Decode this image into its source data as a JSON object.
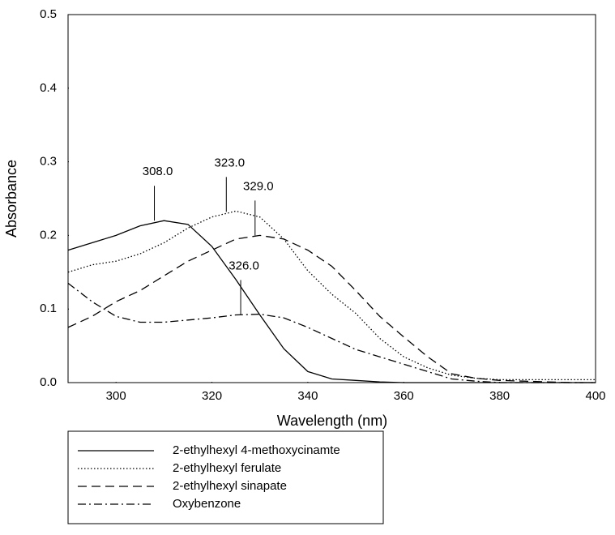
{
  "chart_data": {
    "type": "line",
    "xlabel": "Wavelength (nm)",
    "ylabel": "Absorbance",
    "x": [
      290,
      295,
      300,
      305,
      310,
      315,
      320,
      325,
      330,
      335,
      340,
      345,
      350,
      355,
      360,
      365,
      370,
      375,
      380,
      385,
      390,
      395,
      400
    ],
    "series": [
      {
        "name": "2-ethylhexyl 4-methoxycinamte",
        "color": "#000000",
        "dash": "solid",
        "values": [
          0.18,
          0.19,
          0.2,
          0.213,
          0.22,
          0.215,
          0.185,
          0.14,
          0.092,
          0.046,
          0.015,
          0.005,
          0.003,
          0.001,
          0,
          0,
          0,
          0,
          0,
          0,
          0,
          0,
          0
        ]
      },
      {
        "name": "2-ethylhexyl ferulate",
        "color": "#000000",
        "dash": "dotted",
        "values": [
          0.15,
          0.16,
          0.165,
          0.175,
          0.19,
          0.21,
          0.225,
          0.233,
          0.225,
          0.195,
          0.152,
          0.12,
          0.094,
          0.06,
          0.035,
          0.02,
          0.01,
          0.006,
          0.004,
          0.004,
          0.004,
          0.004,
          0.004
        ]
      },
      {
        "name": "2-ethylhexyl sinapate",
        "color": "#000000",
        "dash": "dashed",
        "values": [
          0.075,
          0.09,
          0.11,
          0.125,
          0.145,
          0.165,
          0.18,
          0.195,
          0.2,
          0.195,
          0.18,
          0.158,
          0.125,
          0.09,
          0.062,
          0.035,
          0.012,
          0.006,
          0.003,
          0.002,
          0.001,
          0,
          0
        ]
      },
      {
        "name": "Oxybenzone",
        "color": "#000000",
        "dash": "dashdot",
        "values": [
          0.135,
          0.11,
          0.09,
          0.082,
          0.082,
          0.085,
          0.088,
          0.092,
          0.093,
          0.088,
          0.075,
          0.06,
          0.045,
          0.035,
          0.025,
          0.015,
          0.005,
          0.002,
          0,
          0,
          0,
          0,
          0
        ]
      }
    ],
    "annotations": [
      {
        "label": "308.0",
        "x": 308,
        "y": 0.22
      },
      {
        "label": "323.0",
        "x": 323,
        "y": 0.232
      },
      {
        "label": "329.0",
        "x": 329,
        "y": 0.2
      },
      {
        "label": "326.0",
        "x": 326,
        "y": 0.092
      }
    ],
    "xlim": [
      290,
      400
    ],
    "xticks": [
      300,
      320,
      340,
      360,
      380,
      400
    ],
    "ylim": [
      0,
      0.5
    ],
    "yticks": [
      {
        "value": 0,
        "label": "0.0"
      },
      0.1,
      0.2,
      0.3,
      0.4,
      0.5
    ],
    "grid": false,
    "legend": "below"
  }
}
